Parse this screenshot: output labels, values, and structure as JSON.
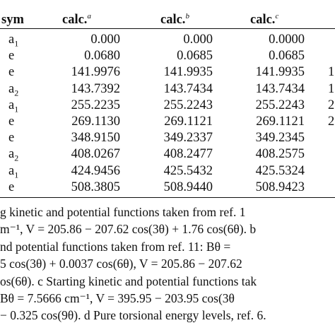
{
  "table": {
    "headers": {
      "sym": "sym",
      "calc_a": "calc.",
      "calc_a_mark": "a",
      "calc_b": "calc.",
      "calc_b_mark": "b",
      "calc_c": "calc.",
      "calc_c_mark": "c"
    },
    "rows": [
      {
        "sym": "a",
        "sym_sub": "1",
        "a": "0.000",
        "b": "0.000",
        "c": "0.0000",
        "edge": ""
      },
      {
        "sym": "e",
        "sym_sub": "",
        "a": "0.0680",
        "b": "0.0685",
        "c": "0.0685",
        "edge": ""
      },
      {
        "sym": "e",
        "sym_sub": "",
        "a": "141.9976",
        "b": "141.9935",
        "c": "141.9935",
        "edge": "1"
      },
      {
        "sym": "a",
        "sym_sub": "2",
        "a": "143.7392",
        "b": "143.7434",
        "c": "143.7434",
        "edge": "1"
      },
      {
        "sym": "a",
        "sym_sub": "1",
        "a": "255.2235",
        "b": "255.2243",
        "c": "255.2243",
        "edge": "2"
      },
      {
        "sym": "e",
        "sym_sub": "",
        "a": "269.1130",
        "b": "269.1121",
        "c": "269.1121",
        "edge": "2"
      },
      {
        "sym": "e",
        "sym_sub": "",
        "a": "348.9150",
        "b": "349.2337",
        "c": "349.2345",
        "edge": ""
      },
      {
        "sym": "a",
        "sym_sub": "2",
        "a": "408.0267",
        "b": "408.2477",
        "c": "408.2575",
        "edge": ""
      },
      {
        "sym": "a",
        "sym_sub": "1",
        "a": "424.9456",
        "b": "425.5432",
        "c": "425.5324",
        "edge": ""
      },
      {
        "sym": "e",
        "sym_sub": "",
        "a": "508.3805",
        "b": "508.9440",
        "c": "508.9423",
        "edge": ""
      }
    ]
  },
  "footnotes": [
    "g kinetic and potential functions taken from ref. 1",
    "m⁻¹,  V = 205.86 − 207.62 cos(3θ) + 1.76 cos(6θ). b",
    "nd potential functions taken from ref. 11: Bθ =",
    "5  cos(3θ) + 0.0037  cos(6θ),  V = 205.86 − 207.62",
    "os(6θ). c Starting kinetic and potential functions tak",
    "  Bθ = 7.5666  cm⁻¹,  V = 395.95 − 203.95  cos(3θ",
    "− 0.325 cos(9θ). d Pure torsional energy levels, ref. 6."
  ]
}
